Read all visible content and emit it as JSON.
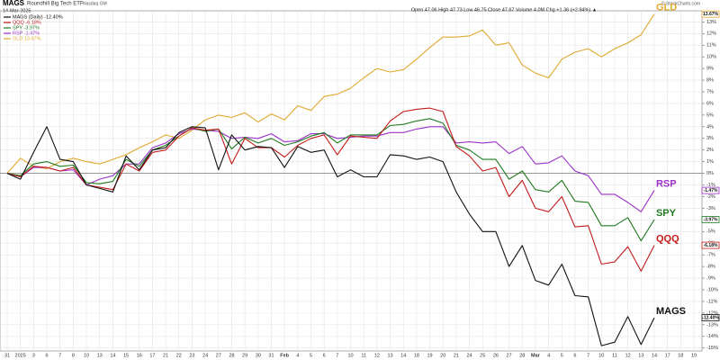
{
  "chart_data": {
    "type": "line",
    "symbol": "MAGS",
    "title": "Roundhill Big Tech ETF",
    "exchange": "Nasdaq GM",
    "date": "14-Mar-2025",
    "quote": "Open 47.06  High 47.73  Low 46.75  Close 47.67  Volume 4.0M  Chg +1.36 (+2.94%) ▲",
    "source": "© StockCharts.com",
    "categories": [
      "31",
      "2025",
      "3",
      "6",
      "7",
      "8",
      "10",
      "13",
      "14",
      "15",
      "16",
      "17",
      "21",
      "22",
      "23",
      "24",
      "27",
      "28",
      "29",
      "30",
      "31",
      "Feb",
      "4",
      "5",
      "6",
      "7",
      "10",
      "11",
      "12",
      "13",
      "14",
      "18",
      "19",
      "20",
      "21",
      "24",
      "25",
      "26",
      "27",
      "28",
      "Mar",
      "4",
      "5",
      "6",
      "7",
      "10",
      "11",
      "12",
      "13",
      "14",
      "17",
      "18",
      "19"
    ],
    "ylim": [
      -15.1,
      13.8
    ],
    "yticks": [
      {
        "value": 13,
        "label": "13%"
      },
      {
        "value": 12,
        "label": "12%"
      },
      {
        "value": 11,
        "label": "11%"
      },
      {
        "value": 10,
        "label": "10%"
      },
      {
        "value": 9,
        "label": "9%"
      },
      {
        "value": 8,
        "label": "8%"
      },
      {
        "value": 7,
        "label": "7%"
      },
      {
        "value": 6,
        "label": "6%"
      },
      {
        "value": 5,
        "label": "5%"
      },
      {
        "value": 4,
        "label": "4%"
      },
      {
        "value": 3,
        "label": "3%"
      },
      {
        "value": 2,
        "label": "2%"
      },
      {
        "value": 1,
        "label": "1%"
      },
      {
        "value": 0,
        "label": "0%"
      },
      {
        "value": -1,
        "label": "-1%"
      },
      {
        "value": -2,
        "label": "-2%"
      },
      {
        "value": -3,
        "label": "-3%"
      },
      {
        "value": -4,
        "label": "-4%"
      },
      {
        "value": -5,
        "label": "-5%"
      },
      {
        "value": -6,
        "label": "-6%"
      },
      {
        "value": -7,
        "label": "-7%"
      },
      {
        "value": -8,
        "label": "-8%"
      },
      {
        "value": -9,
        "label": "-9%"
      },
      {
        "value": -10,
        "label": "-10%"
      },
      {
        "value": -11,
        "label": "-11%"
      },
      {
        "value": -12,
        "label": "-12%"
      },
      {
        "value": -13,
        "label": "-13%"
      },
      {
        "value": -14,
        "label": "-14%"
      },
      {
        "value": -15,
        "label": "-15%"
      }
    ],
    "grid": true,
    "series": [
      {
        "name": "GLD",
        "legend": "GLD 13.67%",
        "end_label": "13.67%",
        "color": "#e0a82e",
        "values": [
          0,
          1.3,
          0.6,
          0.4,
          1.0,
          1.3,
          1.0,
          0.8,
          1.2,
          1.6,
          2.2,
          2.7,
          3.3,
          3.0,
          3.7,
          4.6,
          5.0,
          4.8,
          5.2,
          4.4,
          5.1,
          4.6,
          5.8,
          5.4,
          6.6,
          6.8,
          7.3,
          8.2,
          9.0,
          8.7,
          8.9,
          9.8,
          10.8,
          11.7,
          11.7,
          11.8,
          12.3,
          11.0,
          11.2,
          9.3,
          8.6,
          8.2,
          9.8,
          10.4,
          10.7,
          10.0,
          10.7,
          11.2,
          11.9,
          13.67,
          null,
          null,
          null
        ]
      },
      {
        "name": "RSP",
        "legend": "RSP -1.47%",
        "end_label": "-1.47%",
        "color": "#9b30c8",
        "values": [
          0,
          -0.3,
          0.5,
          0.5,
          0.2,
          0.3,
          -1.0,
          -0.5,
          -0.2,
          0.8,
          0.8,
          2.2,
          2.6,
          3.4,
          3.8,
          3.7,
          3.6,
          3.0,
          3.1,
          3.0,
          3.4,
          2.7,
          2.8,
          3.4,
          3.4,
          3.0,
          3.1,
          3.2,
          3.2,
          3.5,
          3.5,
          3.8,
          4.0,
          4.0,
          2.6,
          2.7,
          2.6,
          2.7,
          1.7,
          2.3,
          0.8,
          0.9,
          1.5,
          0.2,
          -0.2,
          -1.8,
          -1.8,
          -2.5,
          -3.3,
          -1.47,
          null,
          null,
          null
        ]
      },
      {
        "name": "SPY",
        "legend": "SPY -3.97%",
        "end_label": "-3.97%",
        "color": "#1f7a1f",
        "values": [
          0,
          -0.2,
          0.8,
          1.0,
          0.6,
          0.7,
          -0.8,
          -0.9,
          -0.7,
          1.2,
          0.6,
          2.0,
          2.4,
          3.2,
          3.9,
          3.6,
          3.8,
          2.1,
          3.1,
          2.6,
          3.0,
          2.4,
          2.7,
          3.2,
          3.5,
          2.6,
          3.3,
          3.3,
          3.3,
          4.1,
          4.2,
          4.5,
          4.7,
          4.3,
          2.4,
          2.0,
          1.2,
          1.2,
          -0.5,
          0.2,
          -1.4,
          -1.6,
          -0.6,
          -2.4,
          -2.5,
          -4.5,
          -4.5,
          -3.8,
          -5.8,
          -3.97,
          null,
          null,
          null
        ]
      },
      {
        "name": "QQQ",
        "legend": "QQQ -6.18%",
        "end_label": "-6.18%",
        "color": "#c41a1a",
        "values": [
          0,
          -0.3,
          0.6,
          0.5,
          0.2,
          0.5,
          -1.0,
          -1.2,
          -1.4,
          0.8,
          0.2,
          1.8,
          2.0,
          3.2,
          3.9,
          3.7,
          3.8,
          0.8,
          3.0,
          2.2,
          2.2,
          1.4,
          2.4,
          3.0,
          3.3,
          1.6,
          3.2,
          3.1,
          3.0,
          4.5,
          5.3,
          5.5,
          5.6,
          5.3,
          2.3,
          1.5,
          0.2,
          0.5,
          -2.0,
          -0.6,
          -3.0,
          -3.3,
          -2.0,
          -4.6,
          -4.5,
          -7.8,
          -7.6,
          -6.3,
          -8.4,
          -6.18,
          null,
          null,
          null
        ]
      },
      {
        "name": "MAGS",
        "legend": "MAGS (Daily) -12.40%",
        "end_label": "-12.40%",
        "color": "#111111",
        "values": [
          0,
          -0.5,
          1.8,
          4.0,
          1.2,
          1.0,
          -1.0,
          -1.3,
          -1.6,
          1.5,
          0.3,
          2.0,
          2.2,
          3.5,
          4.0,
          3.9,
          0.3,
          3.3,
          2.0,
          2.3,
          2.2,
          0.5,
          2.3,
          1.8,
          2.0,
          -0.3,
          0.3,
          -0.3,
          -0.3,
          1.6,
          1.5,
          1.2,
          1.4,
          1.0,
          -1.6,
          -3.5,
          -5.0,
          -5.0,
          -8.0,
          -6.2,
          -9.2,
          -9.6,
          -7.8,
          -10.5,
          -10.6,
          -14.8,
          -14.5,
          -12.3,
          -14.7,
          -12.4,
          null,
          null,
          null
        ]
      }
    ]
  }
}
